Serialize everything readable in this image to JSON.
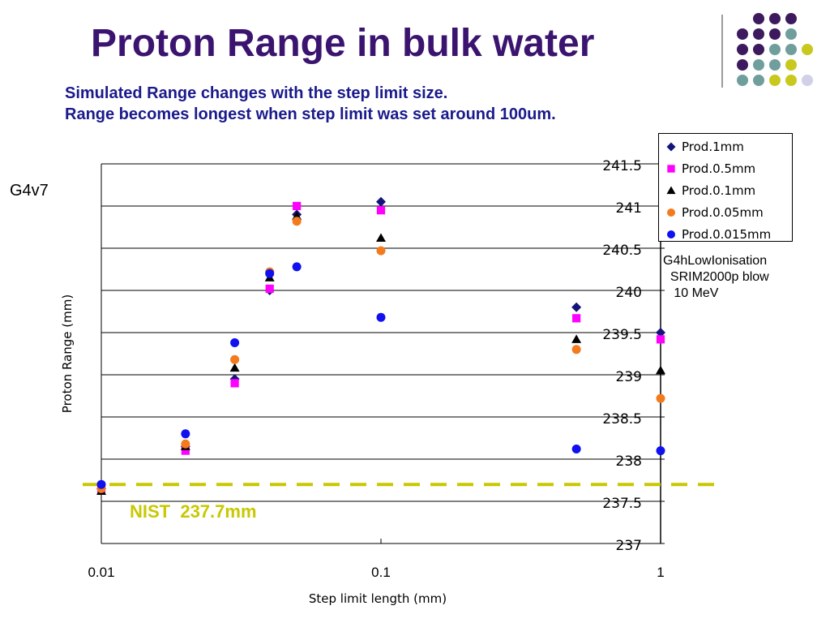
{
  "slide": {
    "title": "Proton Range in bulk water",
    "subtitle_lines": [
      "Simulated Range changes with the step limit size.",
      "Range becomes longest when step limit was set around 100um."
    ],
    "side_label": "G4v7",
    "note_lines": [
      "G4hLowIonisation",
      "  SRIM2000p blow",
      "   10 MeV"
    ],
    "nist_label": "NIST  237.7mm"
  },
  "colors": {
    "title": "#3b1470",
    "subtitle": "#1a1a8c",
    "nist_line": "#c8c800",
    "deco_purple": "#3d1a5e",
    "deco_teal": "#6f9e9c",
    "deco_yellow": "#c8c81e",
    "deco_lavender": "#d0d0e8"
  },
  "chart_data": {
    "type": "scatter",
    "xlabel": "Step limit length (mm)",
    "ylabel": "Proton Range (mm)",
    "x_scale": "log",
    "xlim": [
      0.01,
      1
    ],
    "x_ticks": [
      "0.01",
      "0.1",
      "1"
    ],
    "ylim": [
      237,
      241.5
    ],
    "y_ticks": [
      "237",
      "237.5",
      "238",
      "238.5",
      "239",
      "239.5",
      "240",
      "240.5",
      "241",
      "241.5"
    ],
    "grid": true,
    "legend_placement": "top-right",
    "reference_line": {
      "label": "NIST  237.7mm",
      "value": 237.7,
      "style": "dashed"
    },
    "x": [
      0.01,
      0.02,
      0.03,
      0.04,
      0.05,
      0.1,
      0.5,
      1
    ],
    "series": [
      {
        "name": "Prod.1mm",
        "marker": "diamond",
        "color": "#14147a",
        "values": [
          237.65,
          238.15,
          238.95,
          240.0,
          240.9,
          241.05,
          239.8,
          239.5
        ]
      },
      {
        "name": "Prod.0.5mm",
        "marker": "square",
        "color": "#ff00ff",
        "values": [
          237.65,
          238.1,
          238.9,
          240.02,
          241.0,
          240.95,
          239.67,
          239.42
        ]
      },
      {
        "name": "Prod.0.1mm",
        "marker": "triangle",
        "color": "#000000",
        "values": [
          237.62,
          238.15,
          239.08,
          240.15,
          240.88,
          240.62,
          239.42,
          239.05
        ]
      },
      {
        "name": "Prod.0.05mm",
        "marker": "circle",
        "color": "#f47a1e",
        "values": [
          237.65,
          238.18,
          239.18,
          240.22,
          240.82,
          240.47,
          239.3,
          238.72
        ]
      },
      {
        "name": "Prod.0.015mm",
        "marker": "circle",
        "color": "#1010f0",
        "values": [
          237.7,
          238.3,
          239.38,
          240.2,
          240.28,
          239.68,
          238.12,
          238.1
        ]
      }
    ]
  }
}
